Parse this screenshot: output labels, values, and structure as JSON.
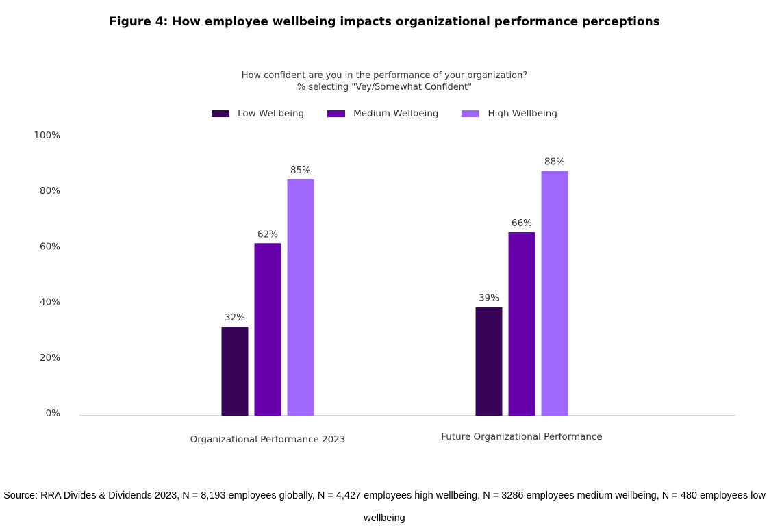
{
  "chart_data": {
    "type": "bar",
    "title": "Figure 4: How employee wellbeing impacts organizational performance perceptions",
    "subtitle_lines": [
      "How confident are you in the performance of your organization?",
      "% selecting \"Vey/Somewhat Confident\""
    ],
    "categories": [
      "Organizational Performance 2023",
      "Future Organizational Performance"
    ],
    "series": [
      {
        "name": "Low Wellbeing",
        "color": "#380458",
        "values": [
          32,
          39
        ]
      },
      {
        "name": "Medium Wellbeing",
        "color": "#6500AB",
        "values": [
          62,
          66
        ]
      },
      {
        "name": "High Wellbeing",
        "color": "#A067FD",
        "values": [
          85,
          88
        ]
      }
    ],
    "data_labels": [
      [
        "32%",
        "39%"
      ],
      [
        "62%",
        "66%"
      ],
      [
        "85%",
        "88%"
      ]
    ],
    "y_ticks": [
      "0%",
      "20%",
      "40%",
      "60%",
      "80%",
      "100%"
    ],
    "ylim": [
      0,
      100
    ],
    "grid": false,
    "legend_position": "top-center"
  },
  "source": "Source: RRA Divides & Dividends 2023, N = 8,193 employees globally, N = 4,427 employees high wellbeing, N = 3286 employees medium wellbeing, N = 480 employees low wellbeing"
}
